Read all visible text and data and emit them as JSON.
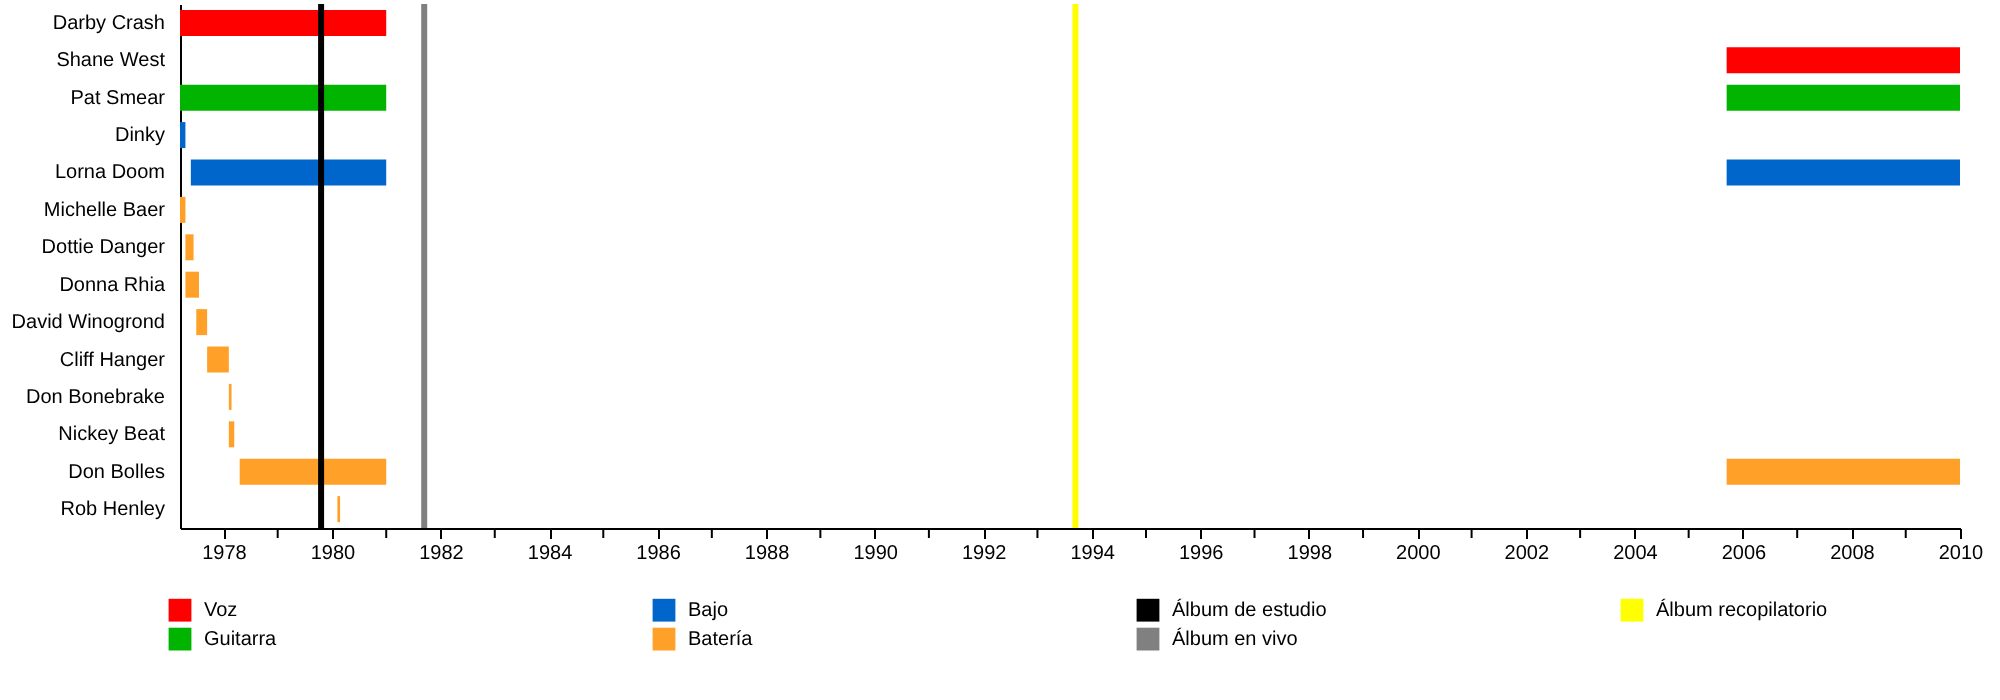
{
  "chart_data": {
    "type": "bar",
    "orientation": "horizontal",
    "legend": "bottom",
    "grid": false,
    "categories": [
      "Darby Crash",
      "Shane West",
      "Pat Smear",
      "Dinky",
      "Lorna Doom",
      "Michelle Baer",
      "Dottie Danger",
      "Donna Rhia",
      "David Winogrond",
      "Cliff Hanger",
      "Don Bonebrake",
      "Nickey Beat",
      "Don Bolles",
      "Rob Henley"
    ],
    "xlim": [
      1977.2,
      2010
    ],
    "xticks": [
      1978,
      {
        "value": 1979,
        "label": null
      },
      1980,
      {
        "value": 1981,
        "label": null
      },
      1982,
      {
        "value": 1983,
        "label": null
      },
      1984,
      {
        "value": 1985,
        "label": null
      },
      1986,
      {
        "value": 1987,
        "label": null
      },
      1988,
      {
        "value": 1989,
        "label": null
      },
      1990,
      {
        "value": 1991,
        "label": null
      },
      1992,
      {
        "value": 1993,
        "label": null
      },
      1994,
      {
        "value": 1995,
        "label": null
      },
      1996,
      {
        "value": 1997,
        "label": null
      },
      1998,
      {
        "value": 1999,
        "label": null
      },
      2000,
      {
        "value": 2001,
        "label": null
      },
      2002,
      {
        "value": 2003,
        "label": null
      },
      2004,
      {
        "value": 2005,
        "label": null
      },
      2006,
      {
        "value": 2007,
        "label": null
      },
      2008,
      {
        "value": 2009,
        "label": null
      },
      2010
    ],
    "series": [
      {
        "name": "Voz",
        "color": "#ff0000",
        "values": [
          3.8,
          4.3,
          null,
          null,
          null,
          null,
          null,
          null,
          null,
          null,
          null,
          null,
          null,
          null
        ],
        "base": [
          1977.2,
          2005.7,
          null,
          null,
          null,
          null,
          null,
          null,
          null,
          null,
          null,
          null,
          null,
          null
        ]
      },
      {
        "name": "Guitarra",
        "color": "#00b400",
        "values": [
          null,
          null,
          3.8,
          null,
          null,
          null,
          null,
          null,
          null,
          null,
          null,
          null,
          null,
          null
        ],
        "base": [
          null,
          null,
          1977.2,
          null,
          null,
          null,
          null,
          null,
          null,
          null,
          null,
          null,
          null,
          null
        ]
      },
      {
        "color": "#00b400",
        "values": [
          null,
          null,
          4.3,
          null,
          null,
          null,
          null,
          null,
          null,
          null,
          null,
          null,
          null,
          null
        ],
        "base": [
          null,
          null,
          2005.7,
          null,
          null,
          null,
          null,
          null,
          null,
          null,
          null,
          null,
          null,
          null
        ]
      },
      {
        "name": "Bajo",
        "color": "#0066cc",
        "values": [
          null,
          null,
          null,
          0.1,
          3.6,
          null,
          null,
          null,
          null,
          null,
          null,
          null,
          null,
          null
        ],
        "base": [
          null,
          null,
          null,
          1977.2,
          1977.4,
          null,
          null,
          null,
          null,
          null,
          null,
          null,
          null,
          null
        ]
      },
      {
        "color": "#0066cc",
        "values": [
          null,
          null,
          null,
          null,
          4.3,
          null,
          null,
          null,
          null,
          null,
          null,
          null,
          null,
          null
        ],
        "base": [
          null,
          null,
          null,
          null,
          2005.7,
          null,
          null,
          null,
          null,
          null,
          null,
          null,
          null,
          null
        ]
      },
      {
        "name": "Batería",
        "color": "#ffa128",
        "values": [
          null,
          null,
          null,
          null,
          null,
          0.1,
          0.15,
          0.25,
          0.2,
          0.4,
          0.05,
          0.1,
          2.7,
          0.05
        ],
        "base": [
          null,
          null,
          null,
          null,
          null,
          1977.2,
          1977.3,
          1977.3,
          1977.5,
          1977.7,
          1978.1,
          1978.1,
          1978.3,
          1980.1
        ]
      },
      {
        "color": "#ffa128",
        "values": [
          null,
          null,
          null,
          null,
          null,
          null,
          null,
          null,
          null,
          null,
          null,
          null,
          4.3,
          null
        ],
        "base": [
          null,
          null,
          null,
          null,
          null,
          null,
          null,
          null,
          null,
          null,
          null,
          null,
          2005.7,
          null
        ]
      }
    ],
    "ref_lines": [
      {
        "axis": "x",
        "value": 1979.8,
        "label": "Álbum de estudio",
        "color": "#000000"
      },
      {
        "axis": "x",
        "value": 1981.7,
        "label": "Álbum en vivo",
        "color": "#808080"
      },
      {
        "axis": "x",
        "value": 1993.7,
        "label": "Álbum recopilatorio",
        "color": "#ffff00"
      }
    ]
  }
}
